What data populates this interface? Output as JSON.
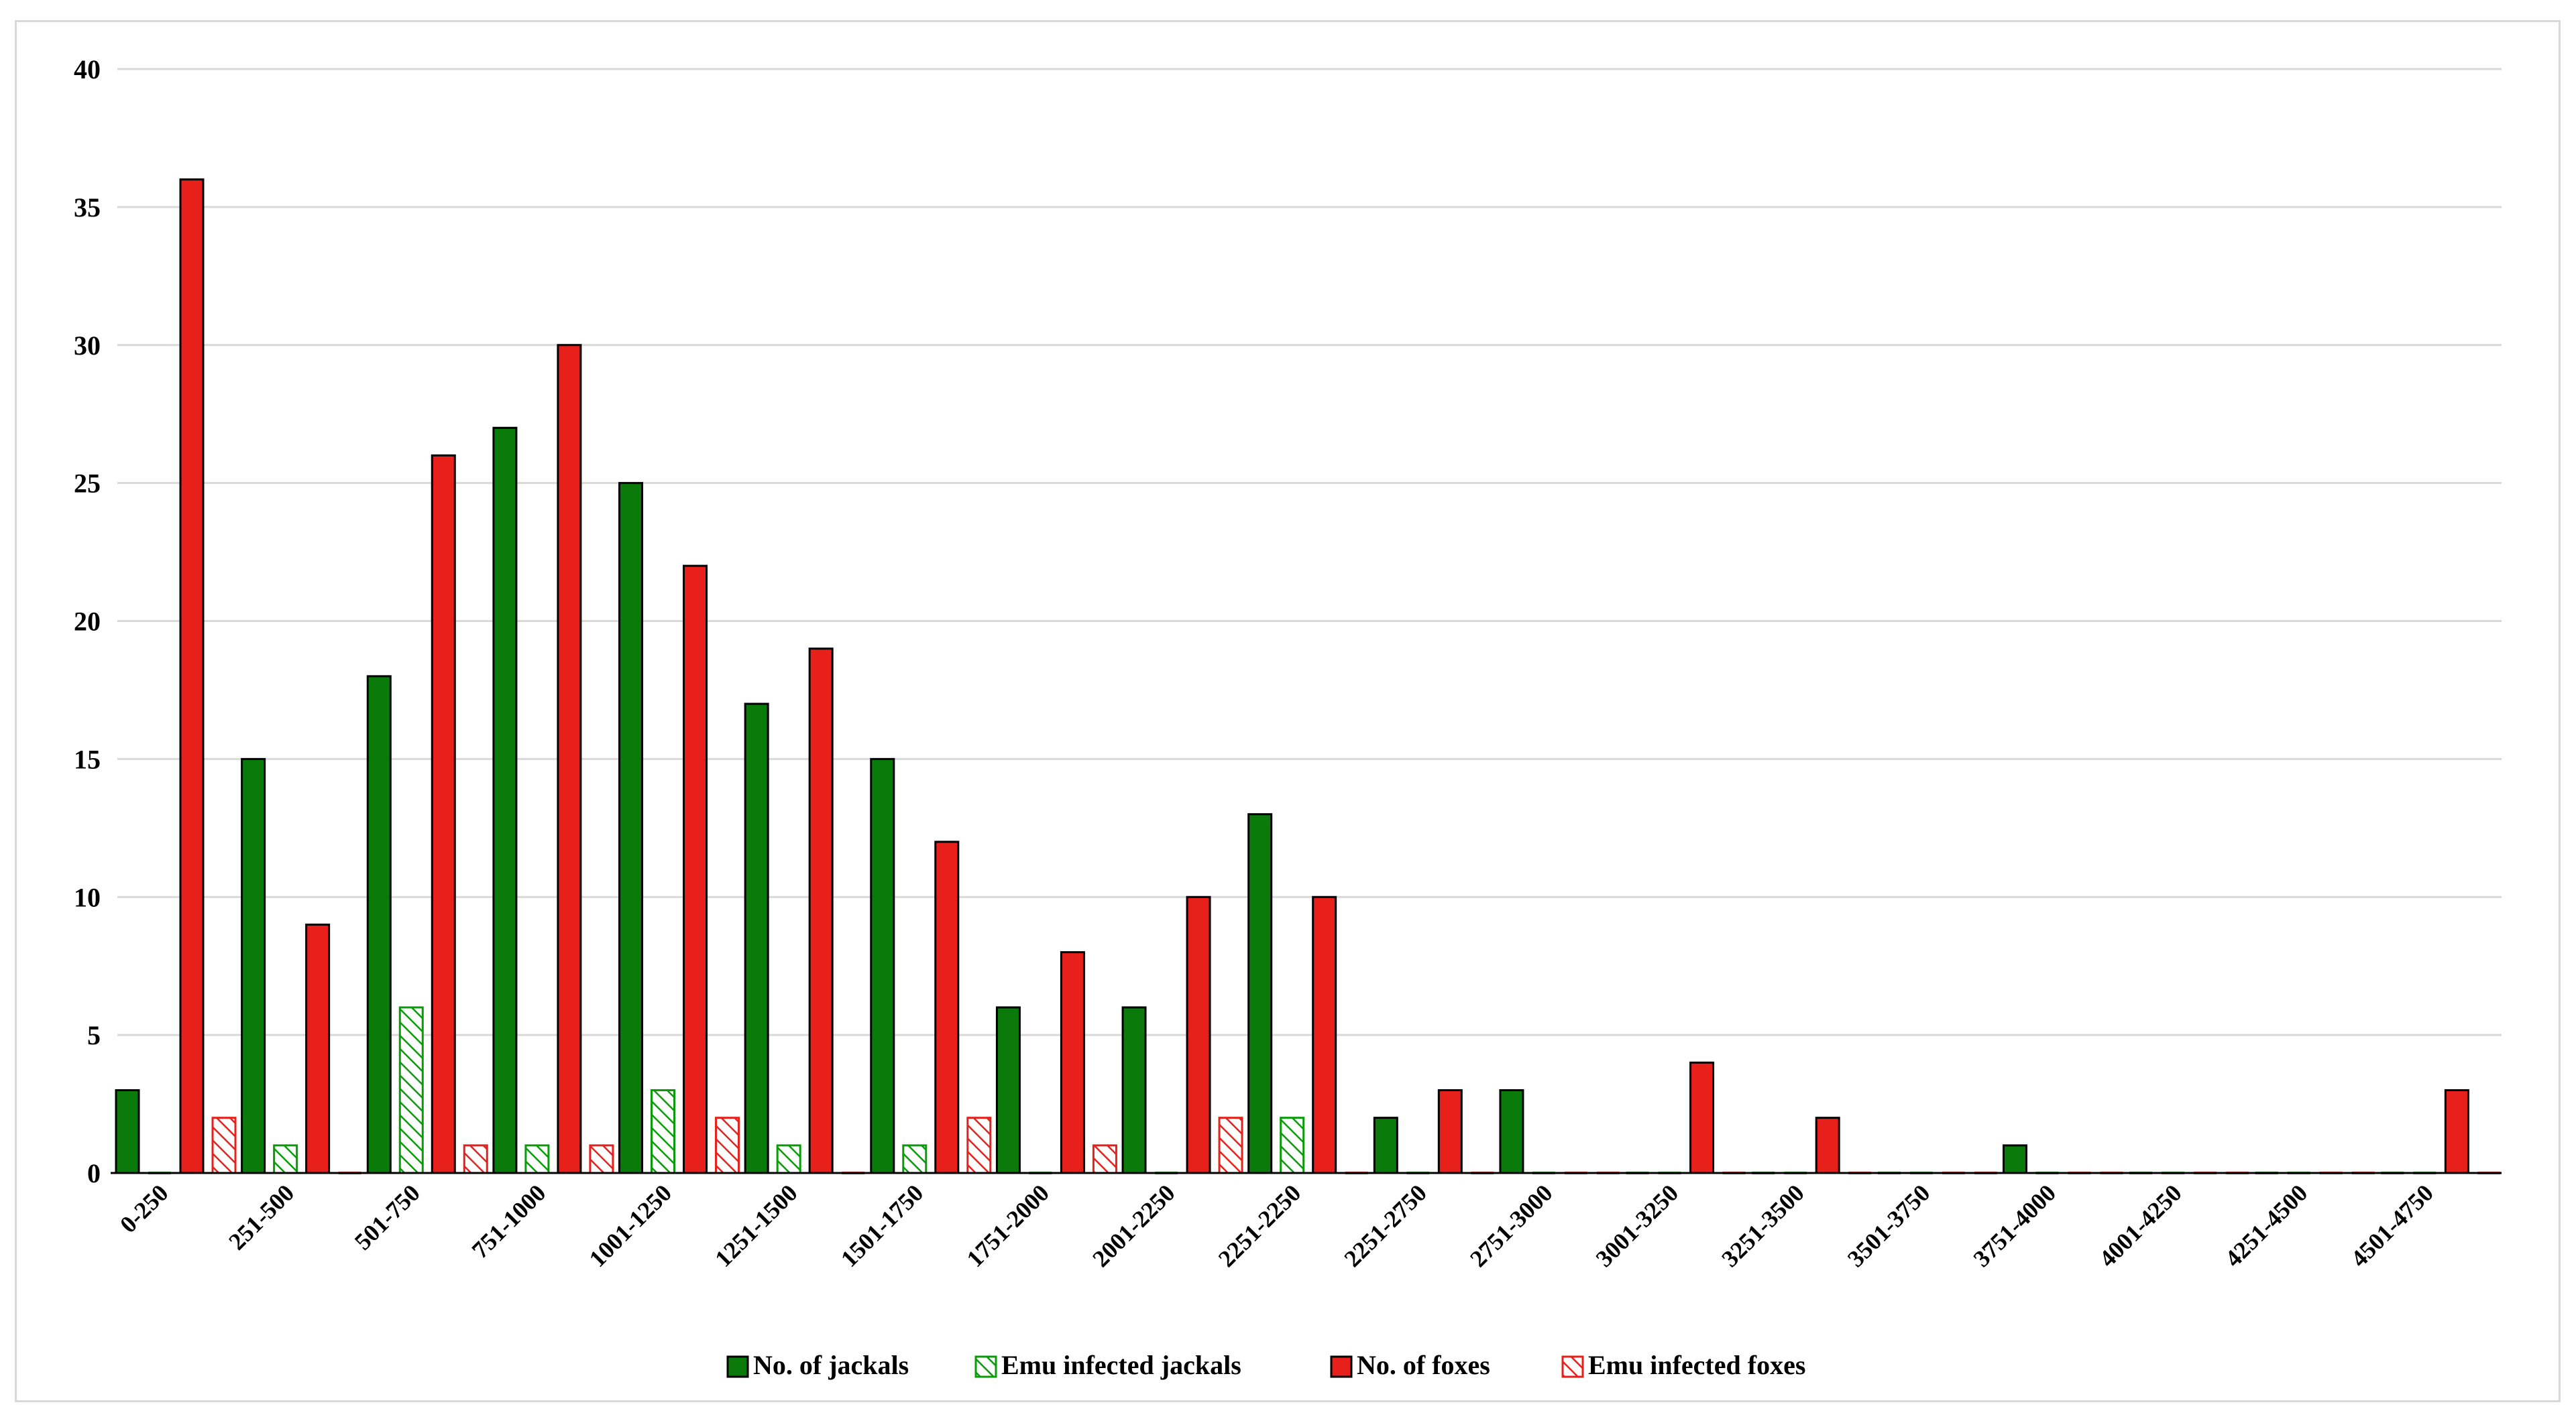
{
  "chart_data": {
    "type": "bar",
    "title": "",
    "xlabel": "",
    "ylabel": "",
    "ylim": [
      0,
      40
    ],
    "yticks": [
      0,
      5,
      10,
      15,
      20,
      25,
      30,
      35,
      40
    ],
    "grid": true,
    "legend_position": "bottom",
    "categories": [
      "0-250",
      "251-500",
      "501-750",
      "751-1000",
      "1001-1250",
      "1251-1500",
      "1501-1750",
      "1751-2000",
      "2001-2250",
      "2251-2250",
      "2251-2750",
      "2751-3000",
      "3001-3250",
      "3251-3500",
      "3501-3750",
      "3751-4000",
      "4001-4250",
      "4251-4500",
      "4501-4750"
    ],
    "series": [
      {
        "name": "No. of jackals",
        "color": "#0a7a0a",
        "pattern": "solid",
        "values": [
          3,
          15,
          18,
          27,
          25,
          17,
          15,
          6,
          6,
          13,
          2,
          3,
          0,
          0,
          0,
          1,
          0,
          0,
          0
        ]
      },
      {
        "name": "Emu infected jackals",
        "color": "#0a9a0a",
        "pattern": "hatched",
        "values": [
          0,
          1,
          6,
          1,
          3,
          1,
          1,
          0,
          0,
          2,
          0,
          0,
          0,
          0,
          0,
          0,
          0,
          0,
          0
        ]
      },
      {
        "name": "No. of foxes",
        "color": "#e8201c",
        "pattern": "solid",
        "values": [
          36,
          9,
          26,
          30,
          22,
          19,
          12,
          8,
          10,
          10,
          3,
          0,
          4,
          2,
          0,
          0,
          0,
          0,
          3
        ]
      },
      {
        "name": "Emu infected foxes",
        "color": "#e8201c",
        "pattern": "hatched",
        "values": [
          2,
          0,
          1,
          1,
          2,
          0,
          2,
          1,
          2,
          0,
          0,
          0,
          0,
          0,
          0,
          0,
          0,
          0,
          0
        ]
      }
    ]
  }
}
